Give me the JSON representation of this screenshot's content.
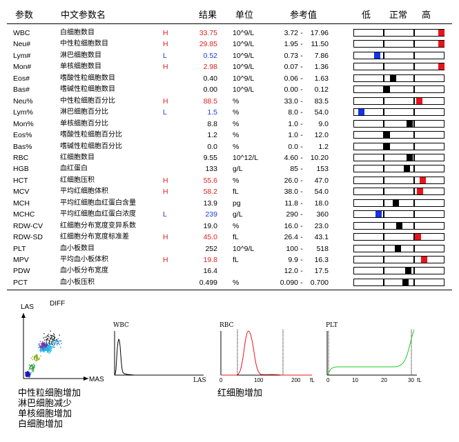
{
  "header": {
    "param": "参数",
    "name": "中文参数名",
    "result": "结果",
    "unit": "单位",
    "ref": "参考值",
    "low": "低",
    "normal": "正常",
    "high": "高"
  },
  "ref_sep": "-",
  "colors": {
    "red": "#e8141c",
    "blue": "#1432e6",
    "black": "#000000"
  },
  "rows": [
    {
      "code": "WBC",
      "name": "白细胞数目",
      "flag": "H",
      "result": "33.75",
      "unit": "10^9/L",
      "lo": "3.72",
      "hi": "17.96",
      "marker_pos": 0.97,
      "marker_color": "red"
    },
    {
      "code": "Neu#",
      "name": "中性粒细胞数目",
      "flag": "H",
      "result": "29.85",
      "unit": "10^9/L",
      "lo": "1.95",
      "hi": "11.50",
      "marker_pos": 0.97,
      "marker_color": "red"
    },
    {
      "code": "Lym#",
      "name": "淋巴细胞数目",
      "flag": "L",
      "result": "0.52",
      "unit": "10^9/L",
      "lo": "0.73",
      "hi": "7.86",
      "marker_pos": 0.26,
      "marker_color": "blue"
    },
    {
      "code": "Mon#",
      "name": "单核细胞数目",
      "flag": "H",
      "result": "2.98",
      "unit": "10^9/L",
      "lo": "0.07",
      "hi": "1.36",
      "marker_pos": 0.97,
      "marker_color": "red"
    },
    {
      "code": "Eos#",
      "name": "嗜酸性粒细胞数目",
      "flag": "",
      "result": "0.40",
      "unit": "10^9/L",
      "lo": "0.06",
      "hi": "1.63",
      "marker_pos": 0.44,
      "marker_color": "black"
    },
    {
      "code": "Bas#",
      "name": "嗜碱性粒细胞数目",
      "flag": "",
      "result": "0.00",
      "unit": "10^9/L",
      "lo": "0.00",
      "hi": "0.12",
      "marker_pos": 0.37,
      "marker_color": "black"
    },
    {
      "code": "Neu%",
      "name": "中性粒细胞百分比",
      "flag": "H",
      "result": "88.5",
      "unit": "%",
      "lo": "33.0",
      "hi": "83.5",
      "marker_pos": 0.73,
      "marker_color": "red"
    },
    {
      "code": "Lym%",
      "name": "淋巴细胞百分比",
      "flag": "L",
      "result": "1.5",
      "unit": "%",
      "lo": "8.0",
      "hi": "54.0",
      "marker_pos": 0.09,
      "marker_color": "blue"
    },
    {
      "code": "Mon%",
      "name": "单核细胞百分比",
      "flag": "",
      "result": "8.8",
      "unit": "%",
      "lo": "1.0",
      "hi": "9.0",
      "marker_pos": 0.62,
      "marker_color": "black"
    },
    {
      "code": "Eos%",
      "name": "嗜酸性粒细胞百分比",
      "flag": "",
      "result": "1.2",
      "unit": "%",
      "lo": "1.0",
      "hi": "12.0",
      "marker_pos": 0.37,
      "marker_color": "black"
    },
    {
      "code": "Bas%",
      "name": "嗜碱性粒细胞百分比",
      "flag": "",
      "result": "0.0",
      "unit": "%",
      "lo": "0.0",
      "hi": "1.2",
      "marker_pos": 0.37,
      "marker_color": "black"
    },
    {
      "code": "RBC",
      "name": "红细胞数目",
      "flag": "",
      "result": "9.55",
      "unit": "10^12/L",
      "lo": "4.60",
      "hi": "10.20",
      "marker_pos": 0.62,
      "marker_color": "black"
    },
    {
      "code": "HGB",
      "name": "血红蛋白",
      "flag": "",
      "result": "133",
      "unit": "g/L",
      "lo": "85",
      "hi": "153",
      "marker_pos": 0.59,
      "marker_color": "black"
    },
    {
      "code": "HCT",
      "name": "红细胞压积",
      "flag": "H",
      "result": "55.6",
      "unit": "%",
      "lo": "26.0",
      "hi": "47.0",
      "marker_pos": 0.77,
      "marker_color": "red"
    },
    {
      "code": "MCV",
      "name": "平均红细胞体积",
      "flag": "H",
      "result": "58.2",
      "unit": "fL",
      "lo": "38.0",
      "hi": "54.0",
      "marker_pos": 0.74,
      "marker_color": "red"
    },
    {
      "code": "MCH",
      "name": "平均红细胞血红蛋白含量",
      "flag": "",
      "result": "13.9",
      "unit": "pg",
      "lo": "11.8",
      "hi": "18.0",
      "marker_pos": 0.47,
      "marker_color": "black"
    },
    {
      "code": "MCHC",
      "name": "平均红细胞血红蛋白浓度",
      "flag": "L",
      "result": "239",
      "unit": "g/L",
      "lo": "290",
      "hi": "360",
      "marker_pos": 0.28,
      "marker_color": "blue"
    },
    {
      "code": "RDW-CV",
      "name": "红细胞分布宽度变异系数",
      "flag": "",
      "result": "19.0",
      "unit": "%",
      "lo": "16.0",
      "hi": "23.0",
      "marker_pos": 0.51,
      "marker_color": "black"
    },
    {
      "code": "RDW-SD",
      "name": "红细胞分布宽度标准差",
      "flag": "H",
      "result": "45.0",
      "unit": "fL",
      "lo": "26.4",
      "hi": "43.1",
      "marker_pos": 0.71,
      "marker_color": "red"
    },
    {
      "code": "PLT",
      "name": "血小板数目",
      "flag": "",
      "result": "252",
      "unit": "10^9/L",
      "lo": "100",
      "hi": "518",
      "marker_pos": 0.49,
      "marker_color": "black"
    },
    {
      "code": "MPV",
      "name": "平均血小板体积",
      "flag": "H",
      "result": "19.8",
      "unit": "fL",
      "lo": "9.9",
      "hi": "16.3",
      "marker_pos": 0.78,
      "marker_color": "red"
    },
    {
      "code": "PDW",
      "name": "血小板分布宽度",
      "flag": "",
      "result": "16.4",
      "unit": "",
      "lo": "12.0",
      "hi": "17.5",
      "marker_pos": 0.61,
      "marker_color": "black"
    },
    {
      "code": "PCT",
      "name": "血小板压积",
      "flag": "",
      "result": "0.499",
      "unit": "%",
      "lo": "0.090",
      "hi": "0.700",
      "marker_pos": 0.58,
      "marker_color": "black"
    }
  ],
  "graphs": {
    "scatter": {
      "y_label": "LAS",
      "x_label": "MAS",
      "title": "DIFF"
    },
    "wbc": {
      "title": "WBC",
      "x_label": "LAS"
    },
    "rbc": {
      "title": "RBC",
      "ticks": [
        "0",
        "100",
        "200"
      ],
      "unit": "fL"
    },
    "plt": {
      "title": "PLT",
      "ticks": [
        "0",
        "10",
        "20",
        "30"
      ],
      "unit": "fL"
    }
  },
  "notes": [
    "中性粒细胞增加",
    "淋巴细胞减少",
    "单核细胞增加",
    "白细胞增加"
  ],
  "rbc_note": "红细胞增加"
}
